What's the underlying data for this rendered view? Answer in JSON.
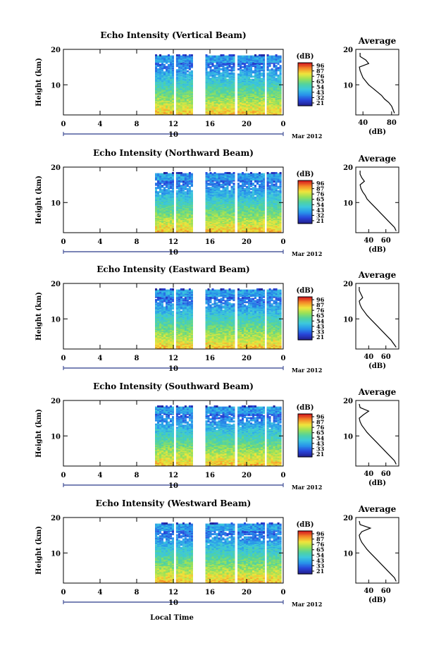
{
  "figure": {
    "xlabel": "Local Time",
    "month_label": "Mar 2012",
    "date_label": "10"
  },
  "chart_data": [
    {
      "type": "heatmap",
      "title": "Echo Intensity (Vertical Beam)",
      "xlabel": "Local Time",
      "ylabel": "Height (km)",
      "xticks": [
        "0",
        "4",
        "8",
        "12",
        "16",
        "20",
        "0"
      ],
      "yticks": [
        "10",
        "20"
      ],
      "xlim": [
        0,
        24
      ],
      "ylim": [
        1.5,
        20
      ],
      "colorbar_label": "(dB)",
      "colorbar_ticks": [
        "96",
        "87",
        "76",
        "65",
        "54",
        "43",
        "32",
        "21"
      ],
      "data_intervals": [
        [
          10.0,
          12.0
        ],
        [
          12.3,
          14.0
        ],
        [
          15.5,
          18.6
        ],
        [
          19.0,
          21.9
        ],
        [
          22.2,
          23.8
        ]
      ],
      "profile": {
        "title": "Average",
        "xlabel": "(dB)",
        "xticks": [
          "40",
          "80"
        ],
        "yticks": [
          "10",
          "20"
        ],
        "xlim": [
          30,
          90
        ],
        "height_km": [
          2,
          3,
          4,
          5,
          6,
          7,
          8,
          9,
          10,
          11,
          12,
          13,
          14,
          15,
          16,
          17,
          18,
          19
        ],
        "power_db": [
          84,
          82,
          80,
          76,
          70,
          66,
          60,
          54,
          48,
          44,
          40,
          38,
          36,
          35,
          48,
          44,
          36,
          36
        ]
      }
    },
    {
      "type": "heatmap",
      "title": "Echo Intensity (Northward Beam)",
      "xlabel": "Local Time",
      "ylabel": "Height (km)",
      "xticks": [
        "0",
        "4",
        "8",
        "12",
        "16",
        "20",
        "0"
      ],
      "yticks": [
        "10",
        "20"
      ],
      "xlim": [
        0,
        24
      ],
      "ylim": [
        1.5,
        20
      ],
      "colorbar_label": "(dB)",
      "colorbar_ticks": [
        "96",
        "87",
        "76",
        "65",
        "54",
        "43",
        "32",
        "21"
      ],
      "data_intervals": [
        [
          10.0,
          12.0
        ],
        [
          12.3,
          14.0
        ],
        [
          15.5,
          18.6
        ],
        [
          19.0,
          21.9
        ],
        [
          22.2,
          23.8
        ]
      ],
      "profile": {
        "title": "Average",
        "xlabel": "(dB)",
        "xticks": [
          "40",
          "60"
        ],
        "yticks": [
          "10",
          "20"
        ],
        "xlim": [
          25,
          75
        ],
        "height_km": [
          2,
          3,
          4,
          5,
          6,
          7,
          8,
          9,
          10,
          11,
          12,
          13,
          14,
          15,
          16,
          17,
          18,
          19
        ],
        "power_db": [
          72,
          70,
          66,
          62,
          58,
          54,
          50,
          46,
          42,
          38,
          36,
          33,
          31,
          30,
          35,
          32,
          30,
          30
        ]
      }
    },
    {
      "type": "heatmap",
      "title": "Echo Intensity (Eastward Beam)",
      "xlabel": "Local Time",
      "ylabel": "Height (km)",
      "xticks": [
        "0",
        "4",
        "8",
        "12",
        "16",
        "20",
        "0"
      ],
      "yticks": [
        "10",
        "20"
      ],
      "xlim": [
        0,
        24
      ],
      "ylim": [
        1.5,
        20
      ],
      "colorbar_label": "(dB)",
      "colorbar_ticks": [
        "96",
        "87",
        "76",
        "65",
        "54",
        "43",
        "33",
        "21"
      ],
      "data_intervals": [
        [
          10.0,
          12.0
        ],
        [
          12.3,
          14.0
        ],
        [
          15.5,
          18.6
        ],
        [
          19.0,
          21.9
        ],
        [
          22.2,
          23.8
        ]
      ],
      "profile": {
        "title": "Average",
        "xlabel": "(dB)",
        "xticks": [
          "40",
          "60"
        ],
        "yticks": [
          "10",
          "20"
        ],
        "xlim": [
          25,
          75
        ],
        "height_km": [
          2,
          3,
          4,
          5,
          6,
          7,
          8,
          9,
          10,
          11,
          12,
          13,
          14,
          15,
          16,
          17,
          18,
          19
        ],
        "power_db": [
          72,
          69,
          66,
          62,
          58,
          54,
          50,
          46,
          42,
          38,
          35,
          32,
          30,
          29,
          33,
          31,
          29,
          29
        ]
      }
    },
    {
      "type": "heatmap",
      "title": "Echo Intensity (Southward Beam)",
      "xlabel": "Local Time",
      "ylabel": "Height (km)",
      "xticks": [
        "0",
        "4",
        "8",
        "12",
        "16",
        "20",
        "0"
      ],
      "yticks": [
        "10",
        "20"
      ],
      "xlim": [
        0,
        24
      ],
      "ylim": [
        1.5,
        20
      ],
      "colorbar_label": "(dB)",
      "colorbar_ticks": [
        "96",
        "87",
        "76",
        "65",
        "54",
        "43",
        "33",
        "21"
      ],
      "data_intervals": [
        [
          10.0,
          12.0
        ],
        [
          12.3,
          14.0
        ],
        [
          15.5,
          18.6
        ],
        [
          19.0,
          21.9
        ],
        [
          22.2,
          23.8
        ]
      ],
      "profile": {
        "title": "Average",
        "xlabel": "(dB)",
        "xticks": [
          "40",
          "60"
        ],
        "yticks": [
          "10",
          "20"
        ],
        "xlim": [
          25,
          75
        ],
        "height_km": [
          2,
          3,
          4,
          5,
          6,
          7,
          8,
          9,
          10,
          11,
          12,
          13,
          14,
          15,
          16,
          17,
          18,
          19
        ],
        "power_db": [
          72,
          70,
          66,
          62,
          58,
          54,
          50,
          46,
          42,
          38,
          35,
          32,
          30,
          29,
          34,
          40,
          30,
          29
        ]
      }
    },
    {
      "type": "heatmap",
      "title": "Echo Intensity (Westward Beam)",
      "xlabel": "Local Time",
      "ylabel": "Height (km)",
      "xticks": [
        "0",
        "4",
        "8",
        "12",
        "16",
        "20",
        "0"
      ],
      "yticks": [
        "10",
        "20"
      ],
      "xlim": [
        0,
        24
      ],
      "ylim": [
        1.5,
        20
      ],
      "colorbar_label": "(dB)",
      "colorbar_ticks": [
        "96",
        "87",
        "76",
        "65",
        "54",
        "43",
        "33",
        "21"
      ],
      "data_intervals": [
        [
          10.0,
          12.0
        ],
        [
          12.3,
          14.0
        ],
        [
          15.5,
          18.6
        ],
        [
          19.0,
          21.9
        ],
        [
          22.2,
          23.8
        ]
      ],
      "profile": {
        "title": "Average",
        "xlabel": "(dB)",
        "xticks": [
          "40",
          "60"
        ],
        "yticks": [
          "10",
          "20"
        ],
        "xlim": [
          25,
          75
        ],
        "height_km": [
          2,
          3,
          4,
          5,
          6,
          7,
          8,
          9,
          10,
          11,
          12,
          13,
          14,
          15,
          16,
          17,
          18,
          19
        ],
        "power_db": [
          72,
          70,
          66,
          62,
          58,
          54,
          50,
          46,
          42,
          38,
          35,
          32,
          30,
          29,
          32,
          42,
          30,
          29
        ]
      }
    }
  ]
}
